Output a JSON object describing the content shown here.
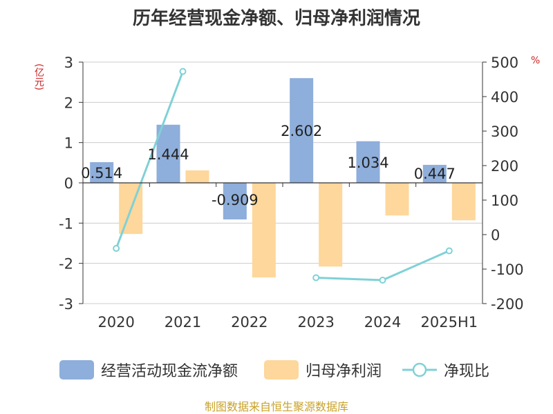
{
  "chart_data": {
    "type": "bar",
    "title": "历年经营现金净额、归母净利润情况",
    "y_left_unit": "(亿元)",
    "y_right_unit": "%",
    "categories": [
      "2020",
      "2021",
      "2022",
      "2023",
      "2024",
      "2025H1"
    ],
    "y_left_range": [
      -3,
      3
    ],
    "y_left_ticks": [
      "3",
      "2",
      "1",
      "0",
      "-1",
      "-2",
      "-3"
    ],
    "y_right_range": [
      -200,
      500
    ],
    "y_right_ticks": [
      "500",
      "400",
      "300",
      "200",
      "100",
      "0",
      "-100",
      "-200"
    ],
    "grid": true,
    "legend_position": "bottom",
    "series": [
      {
        "name": "经营活动现金流净额",
        "type": "bar",
        "axis": "left",
        "color": "#8eaedb",
        "values": [
          0.514,
          1.444,
          -0.909,
          2.602,
          1.034,
          0.447
        ],
        "labels": [
          "0.514",
          "1.444",
          "-0.909",
          "2.602",
          "1.034",
          "0.447"
        ]
      },
      {
        "name": "归母净利润",
        "type": "bar",
        "axis": "left",
        "color": "#fdd79b",
        "values": [
          -1.27,
          0.31,
          -2.35,
          -2.08,
          -0.81,
          -0.93
        ]
      },
      {
        "name": "净现比",
        "type": "line",
        "axis": "right",
        "color": "#7fd1d6",
        "values": [
          -40,
          473,
          null,
          -125,
          -132,
          -47
        ]
      }
    ]
  },
  "source": "制图数据来自恒生聚源数据库"
}
